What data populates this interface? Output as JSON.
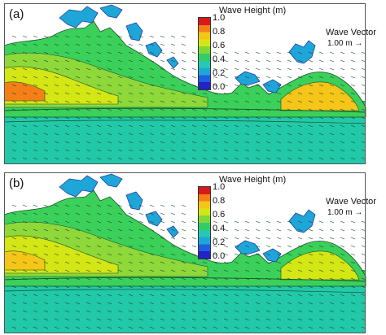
{
  "panels": [
    {
      "label": "(a)"
    },
    {
      "label": "(b)"
    }
  ],
  "legend": {
    "title": "Wave Height (m)",
    "ticks": [
      "1.0",
      "0.8",
      "0.6",
      "0.4",
      "0.2",
      "0.0"
    ],
    "colors": [
      "#d7191c",
      "#f57f17",
      "#f5c518",
      "#d4e614",
      "#7fd83a",
      "#33cc66",
      "#25c9b0",
      "#1fa6d9",
      "#1e5ee0",
      "#2323c8"
    ]
  },
  "vector": {
    "title": "Wave Vector",
    "scale": "1.00 m →"
  }
}
